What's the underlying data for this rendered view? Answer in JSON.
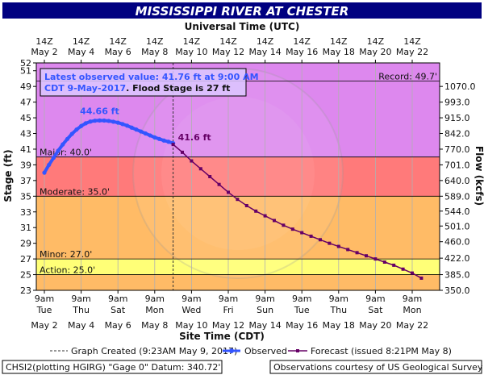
{
  "chart_data": {
    "type": "line",
    "title": "MISSISSIPPI RIVER AT CHESTER",
    "top_axis_title": "Universal Time (UTC)",
    "bottom_axis_title": "Site Time (CDT)",
    "y_left_label": "Stage (ft)",
    "y_right_label": "Flow (kcfs)",
    "ylim": [
      23,
      52
    ],
    "xlim": [
      0,
      21.5
    ],
    "x_unit_note": "days after 9am CDT Tue May 2, 2017",
    "left_ticks": [
      23,
      25,
      27,
      29,
      31,
      33,
      35,
      37,
      39,
      41,
      43,
      45,
      47,
      49,
      51,
      52
    ],
    "right_ticks": [
      {
        "stage": 23.0,
        "label": "350.0"
      },
      {
        "stage": 25.0,
        "label": "385.0"
      },
      {
        "stage": 27.1,
        "label": "422.0"
      },
      {
        "stage": 29.2,
        "label": "460.0"
      },
      {
        "stage": 31.2,
        "label": "501.0"
      },
      {
        "stage": 33.1,
        "label": "544.0"
      },
      {
        "stage": 35.0,
        "label": "589.0"
      },
      {
        "stage": 37.0,
        "label": "640.0"
      },
      {
        "stage": 39.0,
        "label": "701.0"
      },
      {
        "stage": 41.0,
        "label": "770.0"
      },
      {
        "stage": 43.0,
        "label": "842.0"
      },
      {
        "stage": 45.0,
        "label": "915.0"
      },
      {
        "stage": 47.0,
        "label": "993.0"
      },
      {
        "stage": 49.0,
        "label": "1070.0"
      }
    ],
    "top_ticks": [
      {
        "day": 0,
        "line1": "14Z",
        "line2": "May  2"
      },
      {
        "day": 2,
        "line1": "14Z",
        "line2": "May  4"
      },
      {
        "day": 4,
        "line1": "14Z",
        "line2": "May  6"
      },
      {
        "day": 6,
        "line1": "14Z",
        "line2": "May  8"
      },
      {
        "day": 8,
        "line1": "14Z",
        "line2": "May 10"
      },
      {
        "day": 10,
        "line1": "14Z",
        "line2": "May 12"
      },
      {
        "day": 12,
        "line1": "14Z",
        "line2": "May 14"
      },
      {
        "day": 14,
        "line1": "14Z",
        "line2": "May 16"
      },
      {
        "day": 16,
        "line1": "14Z",
        "line2": "May 18"
      },
      {
        "day": 18,
        "line1": "14Z",
        "line2": "May 20"
      },
      {
        "day": 20,
        "line1": "14Z",
        "line2": "May 22"
      }
    ],
    "bottom_ticks": [
      {
        "day": 0,
        "time": "9am",
        "dow": "Tue",
        "date": "May  2"
      },
      {
        "day": 2,
        "time": "9am",
        "dow": "Thu",
        "date": "May  4"
      },
      {
        "day": 4,
        "time": "9am",
        "dow": "Sat",
        "date": "May  6"
      },
      {
        "day": 6,
        "time": "9am",
        "dow": "Mon",
        "date": "May  8"
      },
      {
        "day": 8,
        "time": "9am",
        "dow": "Wed",
        "date": "May 10"
      },
      {
        "day": 10,
        "time": "9am",
        "dow": "Fri",
        "date": "May 12"
      },
      {
        "day": 12,
        "time": "9am",
        "dow": "Sun",
        "date": "May 14"
      },
      {
        "day": 14,
        "time": "9am",
        "dow": "Tue",
        "date": "May 16"
      },
      {
        "day": 16,
        "time": "9am",
        "dow": "Thu",
        "date": "May 18"
      },
      {
        "day": 18,
        "time": "9am",
        "dow": "Sat",
        "date": "May 20"
      },
      {
        "day": 20,
        "time": "9am",
        "dow": "Mon",
        "date": "May 22"
      }
    ],
    "flood_bands": [
      {
        "name": "Major",
        "label": "Major: 40.0'",
        "from": 40.0,
        "to": 52,
        "color": "#dd88ee"
      },
      {
        "name": "Moderate",
        "label": "Moderate: 35.0'",
        "from": 35.0,
        "to": 40.0,
        "color": "#ff7a7a"
      },
      {
        "name": "Minor",
        "label": "Minor: 27.0'",
        "from": 27.0,
        "to": 35.0,
        "color": "#ffbb66"
      },
      {
        "name": "Action",
        "label": "Action: 25.0'",
        "from": 25.0,
        "to": 27.0,
        "color": "#ffff77"
      }
    ],
    "below_action_color": "#ffbb66",
    "record": {
      "label": "Record: 49.7'",
      "value": 49.7
    },
    "created_day": 7.0,
    "observed": {
      "name": "Observed",
      "color": "#3355ff",
      "x": [
        0.0,
        0.25,
        0.5,
        0.75,
        1.0,
        1.25,
        1.5,
        1.75,
        2.0,
        2.25,
        2.5,
        2.75,
        3.0,
        3.25,
        3.5,
        3.75,
        4.0,
        4.25,
        4.5,
        4.75,
        5.0,
        5.25,
        5.5,
        5.75,
        6.0,
        6.25,
        6.5,
        6.75,
        7.0
      ],
      "y": [
        38.0,
        39.0,
        39.9,
        40.8,
        41.6,
        42.3,
        42.95,
        43.5,
        43.95,
        44.3,
        44.52,
        44.63,
        44.66,
        44.65,
        44.6,
        44.5,
        44.38,
        44.2,
        44.0,
        43.75,
        43.5,
        43.25,
        43.0,
        42.75,
        42.5,
        42.3,
        42.1,
        41.95,
        41.76
      ]
    },
    "forecast": {
      "name": "Forecast (issued 8:21PM May 8)",
      "color": "#660066",
      "x": [
        7.0,
        7.5,
        8.0,
        8.5,
        9.0,
        9.5,
        10.0,
        10.5,
        11.0,
        11.5,
        12.0,
        12.5,
        13.0,
        13.5,
        14.0,
        14.5,
        15.0,
        15.5,
        16.0,
        16.5,
        17.0,
        17.5,
        18.0,
        18.5,
        19.0,
        19.5,
        20.0,
        20.5
      ],
      "y": [
        41.6,
        40.6,
        39.5,
        38.5,
        37.5,
        36.5,
        35.5,
        34.6,
        33.8,
        33.1,
        32.5,
        31.9,
        31.3,
        30.8,
        30.35,
        29.9,
        29.45,
        29.0,
        28.6,
        28.2,
        27.8,
        27.4,
        27.0,
        26.6,
        26.2,
        25.7,
        25.2,
        24.55
      ]
    },
    "annotations": {
      "crest_label": "44.66 ft",
      "crest_day": 3.0,
      "crest_value": 44.66,
      "forecast_start_label": "41.6 ft",
      "forecast_start_day": 7.0,
      "forecast_start_value": 41.6
    },
    "info_box": {
      "line1": "Latest observed value: 41.76 ft at 9:00 AM",
      "line2a": "CDT 9-May-2017",
      "line2b": ". Flood Stage is 27 ft"
    },
    "legend": {
      "graph_created": "Graph Created (9:23AM May 9, 2017)",
      "observed": "Observed",
      "forecast": "Forecast (issued 8:21PM May 8)"
    },
    "footer": {
      "left": "CHSI2(plotting HGIRG) \"Gage 0\" Datum: 340.72'",
      "right": "Observations courtesy of US Geological Survey"
    },
    "colors": {
      "title_bg": "#000080",
      "title_fg": "#ffffff",
      "observed": "#3355ff",
      "forecast": "#660066",
      "info_text": "#3355ff",
      "crest_text": "#3355ff"
    }
  }
}
